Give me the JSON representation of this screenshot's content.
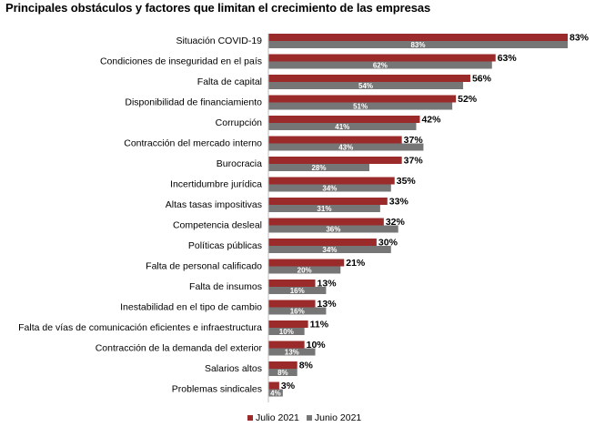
{
  "chart_data": {
    "type": "bar",
    "orientation": "horizontal",
    "title": "Principales obstáculos y factores que limitan el crecimiento de las empresas",
    "categories": [
      "Situación COVID-19",
      "Condiciones de inseguridad en el país",
      "Falta de capital",
      "Disponibilidad de financiamiento",
      "Corrupción",
      "Contracción del mercado interno",
      "Burocracia",
      "Incertidumbre jurídica",
      "Altas tasas impositivas",
      "Competencia desleal",
      "Políticas públicas",
      "Falta de personal calificado",
      "Falta de insumos",
      "Inestabilidad en el tipo de cambio",
      "Falta de vías de comunicación eficientes e infraestructura",
      "Contracción de la demanda del exterior",
      "Salarios altos",
      "Problemas sindicales"
    ],
    "series": [
      {
        "name": "Julio 2021",
        "color": "#9B2B2A",
        "values": [
          83,
          63,
          56,
          52,
          42,
          37,
          37,
          35,
          33,
          32,
          30,
          21,
          13,
          13,
          11,
          10,
          8,
          3
        ]
      },
      {
        "name": "Junio 2021",
        "color": "#767676",
        "values": [
          83,
          62,
          54,
          51,
          41,
          43,
          28,
          34,
          31,
          36,
          34,
          20,
          16,
          16,
          10,
          13,
          8,
          4
        ]
      }
    ],
    "value_suffix": "%",
    "xlim": [
      0,
      83
    ],
    "grid": false,
    "legend_position": "bottom"
  }
}
